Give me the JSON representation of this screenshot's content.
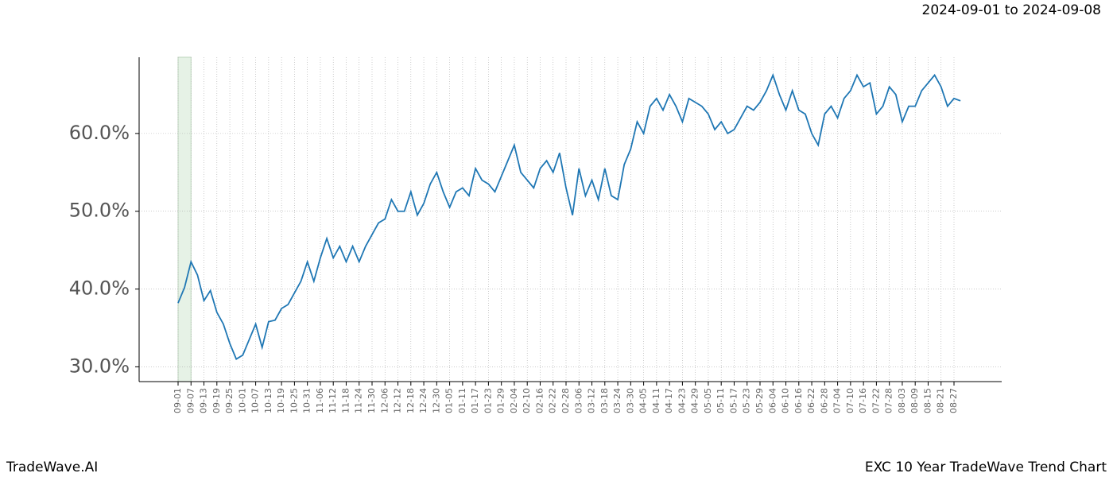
{
  "chart_data": {
    "type": "line",
    "title": "2024-09-01 to 2024-09-08",
    "footer_left": "TradeWave.AI",
    "footer_right": "EXC 10 Year TradeWave Trend Chart",
    "highlight": {
      "start": "09-01",
      "end": "09-07",
      "color": "#e6f2e6"
    },
    "categories": [
      "09-01",
      "09-07",
      "09-13",
      "09-19",
      "09-25",
      "10-01",
      "10-07",
      "10-13",
      "10-19",
      "10-25",
      "10-31",
      "11-06",
      "11-12",
      "11-18",
      "11-24",
      "11-30",
      "12-06",
      "12-12",
      "12-18",
      "12-24",
      "12-30",
      "01-05",
      "01-11",
      "01-17",
      "01-23",
      "01-29",
      "02-04",
      "02-10",
      "02-16",
      "02-22",
      "02-28",
      "03-06",
      "03-12",
      "03-18",
      "03-24",
      "03-30",
      "04-05",
      "04-11",
      "04-17",
      "04-23",
      "04-29",
      "05-05",
      "05-11",
      "05-17",
      "05-23",
      "05-29",
      "06-04",
      "06-10",
      "06-16",
      "06-22",
      "06-28",
      "07-04",
      "07-10",
      "07-16",
      "07-22",
      "07-28",
      "08-03",
      "08-09",
      "08-15",
      "08-21",
      "08-27"
    ],
    "x": [
      "09-01",
      "09-04",
      "09-07",
      "09-10",
      "09-13",
      "09-16",
      "09-19",
      "09-22",
      "09-25",
      "09-28",
      "10-01",
      "10-04",
      "10-07",
      "10-10",
      "10-13",
      "10-16",
      "10-19",
      "10-22",
      "10-25",
      "10-28",
      "10-31",
      "11-03",
      "11-06",
      "11-09",
      "11-12",
      "11-15",
      "11-18",
      "11-21",
      "11-24",
      "11-27",
      "11-30",
      "12-03",
      "12-06",
      "12-09",
      "12-12",
      "12-15",
      "12-18",
      "12-21",
      "12-24",
      "12-27",
      "12-30",
      "01-02",
      "01-05",
      "01-08",
      "01-11",
      "01-14",
      "01-17",
      "01-20",
      "01-23",
      "01-26",
      "01-29",
      "02-01",
      "02-04",
      "02-07",
      "02-10",
      "02-13",
      "02-16",
      "02-19",
      "02-22",
      "02-25",
      "02-28",
      "03-03",
      "03-06",
      "03-09",
      "03-12",
      "03-15",
      "03-18",
      "03-21",
      "03-24",
      "03-27",
      "03-30",
      "04-02",
      "04-05",
      "04-08",
      "04-11",
      "04-14",
      "04-17",
      "04-20",
      "04-23",
      "04-26",
      "04-29",
      "05-02",
      "05-05",
      "05-08",
      "05-11",
      "05-14",
      "05-17",
      "05-20",
      "05-23",
      "05-26",
      "05-29",
      "06-01",
      "06-04",
      "06-07",
      "06-10",
      "06-13",
      "06-16",
      "06-19",
      "06-22",
      "06-25",
      "06-28",
      "07-01",
      "07-04",
      "07-07",
      "07-10",
      "07-13",
      "07-16",
      "07-19",
      "07-22",
      "07-25",
      "07-28",
      "07-31",
      "08-03",
      "08-06",
      "08-09",
      "08-12",
      "08-15",
      "08-18",
      "08-21",
      "08-24",
      "08-27",
      "08-30"
    ],
    "series": [
      {
        "color": "#1f77b4",
        "values": [
          38.2,
          40.2,
          43.5,
          41.8,
          38.5,
          39.8,
          37.0,
          35.5,
          33.0,
          31.0,
          31.5,
          33.5,
          35.5,
          32.5,
          35.8,
          36.0,
          37.5,
          38.0,
          39.5,
          41.0,
          43.5,
          41.0,
          44.0,
          46.5,
          44.0,
          45.5,
          43.5,
          45.5,
          43.5,
          45.5,
          47.0,
          48.5,
          49.0,
          51.5,
          50.0,
          50.0,
          52.5,
          49.5,
          51.0,
          53.5,
          55.0,
          52.5,
          50.5,
          52.5,
          53.0,
          52.0,
          55.5,
          54.0,
          53.5,
          52.5,
          54.5,
          56.5,
          58.5,
          55.0,
          54.0,
          53.0,
          55.5,
          56.5,
          55.0,
          57.5,
          53.0,
          49.5,
          55.5,
          52.0,
          54.0,
          51.5,
          55.5,
          52.0,
          51.5,
          56.0,
          58.0,
          61.5,
          60.0,
          63.5,
          64.5,
          63.0,
          65.0,
          63.5,
          61.5,
          64.5,
          64.0,
          63.5,
          62.5,
          60.5,
          61.5,
          60.0,
          60.5,
          62.0,
          63.5,
          63.0,
          64.0,
          65.5,
          67.5,
          65.0,
          63.0,
          65.5,
          63.0,
          62.5,
          60.0,
          58.5,
          62.5,
          63.5,
          62.0,
          64.5,
          65.5,
          67.5,
          66.0,
          66.5,
          62.5,
          63.5,
          66.0,
          65.0,
          61.5,
          63.5,
          63.5,
          65.5,
          66.5,
          67.5,
          66.0,
          63.5,
          64.5,
          64.2
        ]
      }
    ],
    "ylim": [
      28.1,
      69.8
    ],
    "yticks": [
      {
        "value": 30,
        "label": "30.0%"
      },
      {
        "value": 40,
        "label": "40.0%"
      },
      {
        "value": 50,
        "label": "50.0%"
      },
      {
        "value": 60,
        "label": "60.0%"
      }
    ],
    "grid": true
  }
}
